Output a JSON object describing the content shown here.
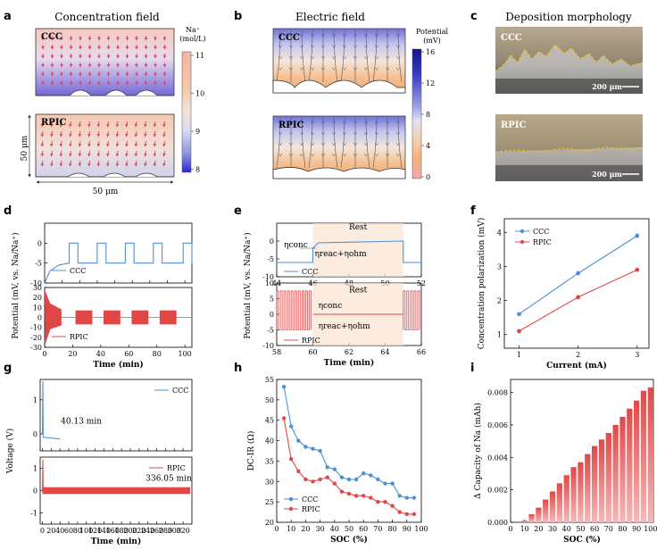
{
  "panels": {
    "a": "a",
    "b": "b",
    "c": "c",
    "d": "d",
    "e": "e",
    "f": "f",
    "g": "g",
    "h": "h",
    "i": "i"
  },
  "titles": {
    "a": "Concentration field",
    "b": "Electric field",
    "c": "Deposition morphology"
  },
  "labels": {
    "ccc": "CCC",
    "rpic": "RPIC",
    "dim_x": "50 μm",
    "dim_y": "50 μm",
    "scale": "200 μm",
    "na_title_1": "Na⁺",
    "na_title_2": "(mol/L)",
    "pot_title_1": "Potential",
    "pot_title_2": "(mV)"
  },
  "colors": {
    "ccc": "#4f8fd6",
    "rpic": "#e04848",
    "arrow": "#d04a78",
    "depo_line": "#f0c020"
  },
  "colorbars": {
    "conc": {
      "ticks": [
        "11",
        "10",
        "9",
        "8"
      ],
      "stops": [
        "#f7b3a0",
        "#f5c8a8",
        "#f3d3c3",
        "#dfe0f0",
        "#a8aee6",
        "#3e3fd6"
      ]
    },
    "pot": {
      "ticks": [
        "16",
        "12",
        "8",
        "4",
        "0"
      ],
      "stops": [
        "#121487",
        "#3a3ec6",
        "#8a8fe2",
        "#d8d9f2",
        "#f6d6b4",
        "#f3b07c",
        "#f5a8ac"
      ]
    }
  },
  "chart_data": [
    {
      "panel": "d",
      "type": "line",
      "xlabel": "Time (min)",
      "ylabel": "Potential  (mV, vs. Na/Na⁺)",
      "top": {
        "name": "CCC",
        "ylim": [
          -10,
          5
        ],
        "yticks": [
          "0",
          "-5",
          "-10"
        ],
        "pulses_min": [
          [
            14,
            19
          ],
          [
            30,
            35
          ],
          [
            46,
            51
          ],
          [
            62,
            67
          ],
          [
            79,
            84
          ]
        ],
        "xlim": [
          0,
          84
        ],
        "xticks": [
          "0",
          "10",
          "20",
          "30",
          "40",
          "50",
          "60",
          "70",
          "80"
        ],
        "on_mv": 0,
        "off_mv": -5,
        "start_mv": -10
      },
      "bottom": {
        "name": "RPIC",
        "ylim": [
          -30,
          30
        ],
        "yticks": [
          "30",
          "20",
          "10",
          "0",
          "-10",
          "-20",
          "-30"
        ],
        "bursts_min": [
          [
            0,
            12
          ],
          [
            22,
            34
          ],
          [
            42,
            54
          ],
          [
            62,
            74
          ],
          [
            82,
            94
          ]
        ],
        "xlim": [
          0,
          105
        ],
        "xticks": [
          "0",
          "20",
          "40",
          "60",
          "80",
          "100"
        ],
        "amp_mv": [
          -7,
          7
        ]
      }
    },
    {
      "panel": "e",
      "type": "line",
      "xlabel": "Time (min)",
      "ylabel": "Potential  (mV, vs. Na/Na⁺)",
      "top": {
        "name": "CCC",
        "xlim": [
          44,
          52
        ],
        "xticks": [
          "44",
          "46",
          "48",
          "50",
          "52"
        ],
        "ylim": [
          -10,
          5
        ],
        "yticks": [
          "0",
          "-5",
          "-10"
        ],
        "rest_window": [
          46,
          51
        ],
        "on_mv": 0,
        "off_mv": -6,
        "rest": "Rest",
        "eta_conc": "ηconc",
        "eta_reac": "ηreac+ηohm"
      },
      "bottom": {
        "name": "RPIC",
        "xlim": [
          58,
          66
        ],
        "xticks": [
          "58",
          "60",
          "62",
          "64",
          "66"
        ],
        "ylim": [
          -10,
          10
        ],
        "yticks": [
          "10",
          "5",
          "0",
          "-5",
          "-10"
        ],
        "rest_window": [
          60,
          65
        ],
        "amp_mv": [
          -5,
          7.5
        ],
        "rest": "Rest",
        "eta_conc": "ηconc",
        "eta_reac": "ηreac+ηohm"
      }
    },
    {
      "panel": "f",
      "type": "line",
      "xlabel": "Current (mA)",
      "ylabel": "Concentration polarization (mV)",
      "x": [
        1,
        2,
        3
      ],
      "xlim": [
        0.75,
        3.2
      ],
      "xticks": [
        "1",
        "2",
        "3"
      ],
      "ylim": [
        0.6,
        4.4
      ],
      "yticks": [
        "1",
        "2",
        "3",
        "4"
      ],
      "series": [
        {
          "name": "CCC",
          "values": [
            1.6,
            2.8,
            3.9
          ]
        },
        {
          "name": "RPIC",
          "values": [
            1.1,
            2.1,
            2.9
          ]
        }
      ]
    },
    {
      "panel": "g",
      "type": "line",
      "xlabel": "Time (min)",
      "ylabel": "Voltage (V)",
      "xlim": [
        -5,
        340
      ],
      "xticks": [
        "0",
        "20",
        "40",
        "60",
        "80",
        "100",
        "120",
        "140",
        "160",
        "180",
        "200",
        "220",
        "240",
        "260",
        "280",
        "300",
        "320"
      ],
      "top": {
        "name": "CCC",
        "ylim": [
          -0.5,
          1.6
        ],
        "yticks": [
          "1",
          "0"
        ],
        "end_min": 40.13,
        "label": "40.13 min"
      },
      "bottom": {
        "name": "RPIC",
        "ylim": [
          -1.5,
          1.5
        ],
        "yticks": [
          "1",
          "0",
          "-1"
        ],
        "end_min": 336.05,
        "label": "336.05 min"
      }
    },
    {
      "panel": "h",
      "type": "line",
      "xlabel": "SOC (%)",
      "ylabel": "DC-IR (Ω)",
      "x": [
        5,
        10,
        15,
        20,
        25,
        30,
        35,
        40,
        45,
        50,
        55,
        60,
        65,
        70,
        75,
        80,
        85,
        90,
        95
      ],
      "xlim": [
        0,
        100
      ],
      "xticks": [
        "0",
        "10",
        "20",
        "30",
        "40",
        "50",
        "60",
        "70",
        "80",
        "90",
        "100"
      ],
      "ylim": [
        20,
        55
      ],
      "yticks": [
        "20",
        "25",
        "30",
        "35",
        "40",
        "45",
        "50",
        "55"
      ],
      "series": [
        {
          "name": "CCC",
          "values": [
            53.2,
            43.5,
            40.0,
            38.5,
            38.0,
            37.5,
            33.5,
            33.0,
            31.0,
            30.5,
            30.5,
            32.0,
            31.5,
            30.5,
            29.5,
            29.5,
            26.5,
            26.0,
            26.0
          ]
        },
        {
          "name": "RPIC",
          "values": [
            45.5,
            35.5,
            32.5,
            30.5,
            30.0,
            30.5,
            31.0,
            29.5,
            27.5,
            27.0,
            26.5,
            26.5,
            26.0,
            25.0,
            25.0,
            24.0,
            22.5,
            22.0,
            22.0
          ]
        }
      ]
    },
    {
      "panel": "i",
      "type": "bar",
      "xlabel": "SOC (%)",
      "ylabel": "Δ Capacity of Na (mAh)",
      "categories": [
        5,
        10,
        15,
        20,
        25,
        30,
        35,
        40,
        45,
        50,
        55,
        60,
        65,
        70,
        75,
        80,
        85,
        90,
        95,
        100
      ],
      "values": [
        0.0,
        0.0001,
        0.0005,
        0.0009,
        0.0014,
        0.0019,
        0.0024,
        0.0029,
        0.0034,
        0.0037,
        0.0042,
        0.0047,
        0.0051,
        0.0055,
        0.006,
        0.0065,
        0.007,
        0.0075,
        0.0081,
        0.0083
      ],
      "xlim": [
        0,
        102
      ],
      "xticks": [
        "0",
        "10",
        "20",
        "30",
        "40",
        "50",
        "60",
        "70",
        "80",
        "90",
        "100"
      ],
      "ylim": [
        0,
        0.0088
      ],
      "yticks": [
        "0.000",
        "0.002",
        "0.004",
        "0.006",
        "0.008"
      ]
    }
  ]
}
